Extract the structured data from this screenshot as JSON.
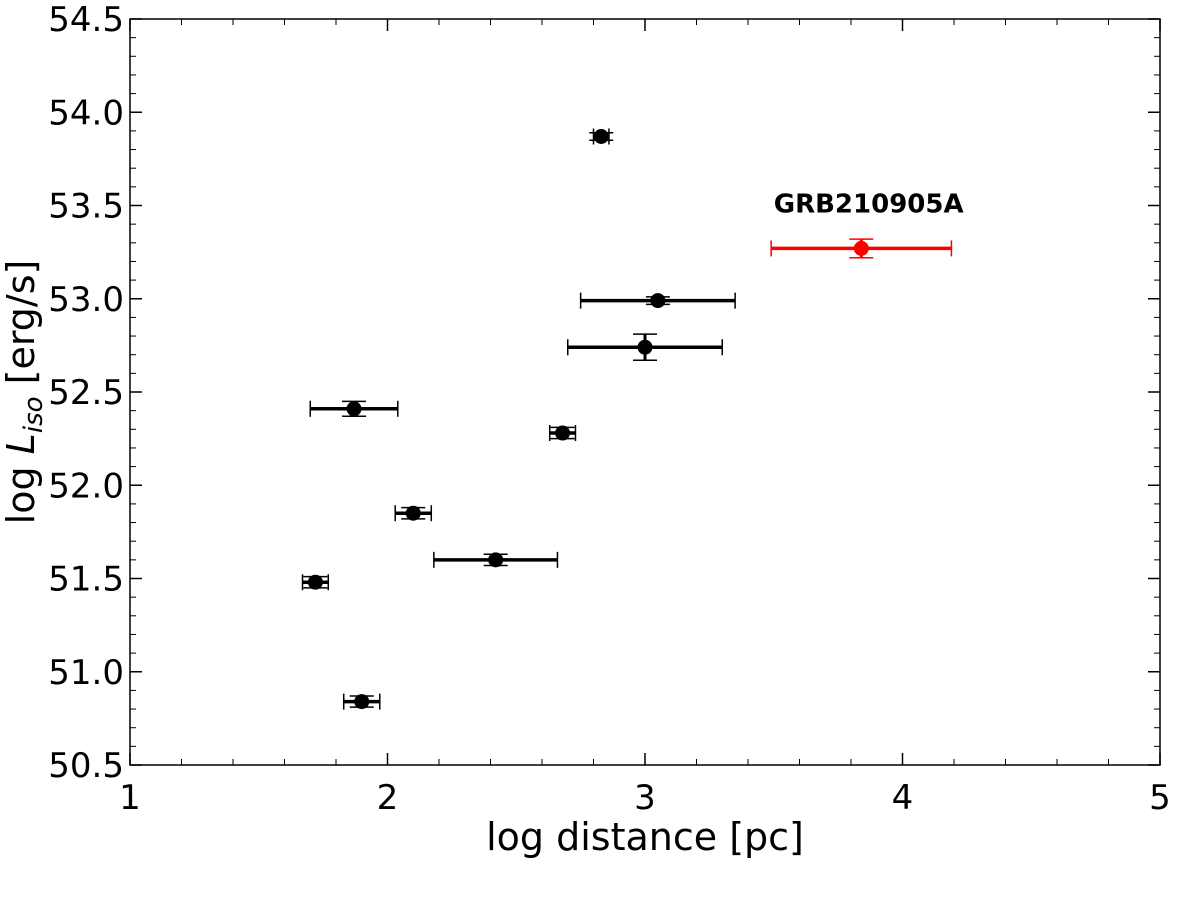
{
  "chart_data": {
    "type": "scatter",
    "xlabel": "log distance [pc]",
    "ylabel": {
      "prefix": "log ",
      "symbol": "L",
      "subscript": "iso",
      "suffix": " [erg/s]"
    },
    "xlim": [
      1,
      5
    ],
    "ylim": [
      50.5,
      54.5
    ],
    "xticks": [
      "1",
      "2",
      "3",
      "4",
      "5"
    ],
    "yticks": [
      "50.5",
      "51.0",
      "51.5",
      "52.0",
      "52.5",
      "53.0",
      "53.5",
      "54.0",
      "54.5"
    ],
    "grid": false,
    "colors": {
      "default": "#000000",
      "highlight": "#ff0000"
    },
    "points": [
      {
        "x": 2.83,
        "y": 53.87,
        "xerr": 0.03,
        "yerr": 0.02,
        "color": "#000000"
      },
      {
        "x": 3.05,
        "y": 52.99,
        "xerr": 0.3,
        "yerr": 0.02,
        "color": "#000000"
      },
      {
        "x": 3.0,
        "y": 52.74,
        "xerr": 0.3,
        "yerr": 0.07,
        "color": "#000000"
      },
      {
        "x": 1.87,
        "y": 52.41,
        "xerr": 0.17,
        "yerr": 0.04,
        "color": "#000000"
      },
      {
        "x": 2.68,
        "y": 52.28,
        "xerr": 0.05,
        "yerr": 0.03,
        "color": "#000000"
      },
      {
        "x": 2.1,
        "y": 51.85,
        "xerr": 0.07,
        "yerr": 0.03,
        "color": "#000000"
      },
      {
        "x": 2.42,
        "y": 51.6,
        "xerr": 0.24,
        "yerr": 0.03,
        "color": "#000000"
      },
      {
        "x": 1.72,
        "y": 51.48,
        "xerr": 0.05,
        "yerr": 0.03,
        "color": "#000000"
      },
      {
        "x": 1.9,
        "y": 50.84,
        "xerr": 0.07,
        "yerr": 0.03,
        "color": "#000000"
      },
      {
        "x": 3.84,
        "y": 53.27,
        "xerr": 0.35,
        "yerr": 0.05,
        "color": "#ff0000",
        "label": "GRB210905A"
      }
    ],
    "annotations": [
      {
        "text": "GRB210905A",
        "x": 3.5,
        "y": 53.51,
        "color": "#000000"
      }
    ]
  }
}
